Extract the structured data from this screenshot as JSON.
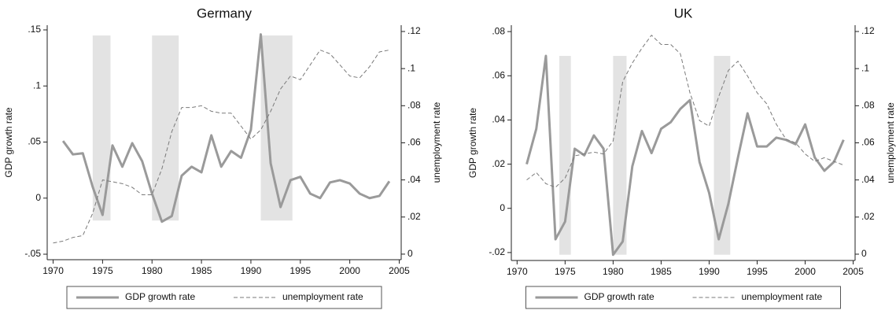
{
  "chart_data": [
    {
      "type": "line",
      "title": "Germany",
      "y_label": "GDP growth rate",
      "y2_label": "unemployment rate",
      "x": [
        1970,
        1971,
        1972,
        1973,
        1974,
        1975,
        1976,
        1977,
        1978,
        1979,
        1980,
        1981,
        1982,
        1983,
        1984,
        1985,
        1986,
        1987,
        1988,
        1989,
        1990,
        1991,
        1992,
        1993,
        1994,
        1995,
        1996,
        1997,
        1998,
        1999,
        2000,
        2001,
        2002,
        2003,
        2004
      ],
      "series": [
        {
          "name": "GDP growth rate",
          "color": "#9a9a9a",
          "line_style": "solid",
          "axis": "y",
          "values": [
            null,
            0.051,
            0.039,
            0.04,
            0.01,
            -0.015,
            0.047,
            0.028,
            0.049,
            0.033,
            0.004,
            -0.021,
            -0.016,
            0.02,
            0.028,
            0.023,
            0.056,
            0.028,
            0.042,
            0.036,
            0.061,
            0.146,
            0.031,
            -0.008,
            0.016,
            0.019,
            0.004,
            0.0,
            0.014,
            0.016,
            0.013,
            0.004,
            0.0,
            0.002,
            0.015
          ]
        },
        {
          "name": "unemployment rate",
          "color": "#7a7a7a",
          "line_style": "dashed",
          "axis": "y2",
          "values": [
            0.006,
            0.007,
            0.009,
            0.01,
            0.022,
            0.04,
            0.039,
            0.038,
            0.036,
            0.032,
            0.032,
            0.046,
            0.066,
            0.079,
            0.079,
            0.08,
            0.077,
            0.076,
            0.076,
            0.069,
            0.062,
            0.067,
            0.077,
            0.089,
            0.096,
            0.094,
            0.102,
            0.11,
            0.108,
            0.102,
            0.096,
            0.095,
            0.101,
            0.109,
            0.11
          ]
        }
      ],
      "recessions": [
        {
          "start": 1974,
          "end": 1975.8
        },
        {
          "start": 1980,
          "end": 1982.7
        },
        {
          "start": 1991,
          "end": 1994.2
        }
      ],
      "recession_range": [
        -0.02,
        0.145
      ],
      "xlim": [
        1969.4,
        2005.2
      ],
      "xticks": [
        1970,
        1975,
        1980,
        1985,
        1990,
        1995,
        2000,
        2005
      ],
      "ylim": [
        -0.0549,
        0.1542
      ],
      "yticks": [
        {
          "value": -0.05,
          "label": "-.05"
        },
        0,
        {
          "value": 0.05,
          "label": ".05"
        },
        {
          "value": 0.1,
          "label": ".1"
        },
        {
          "value": 0.15,
          "label": ".15"
        }
      ],
      "y2lim": [
        -0.003,
        0.1234
      ],
      "y2ticks": [
        0,
        {
          "value": 0.02,
          "label": ".02"
        },
        {
          "value": 0.04,
          "label": ".04"
        },
        {
          "value": 0.06,
          "label": ".06"
        },
        {
          "value": 0.08,
          "label": ".08"
        },
        {
          "value": 0.1,
          "label": ".1"
        },
        {
          "value": 0.12,
          "label": ".12"
        }
      ],
      "legend": "bottom"
    },
    {
      "type": "line",
      "title": "UK",
      "y_label": "GDP growth rate",
      "y2_label": "unemployment rate",
      "x": [
        1971,
        1972,
        1973,
        1974,
        1975,
        1976,
        1977,
        1978,
        1979,
        1980,
        1981,
        1982,
        1983,
        1984,
        1985,
        1986,
        1987,
        1988,
        1989,
        1990,
        1991,
        1992,
        1993,
        1994,
        1995,
        1996,
        1997,
        1998,
        1999,
        2000,
        2001,
        2002,
        2003,
        2004
      ],
      "series": [
        {
          "name": "GDP growth rate",
          "color": "#9a9a9a",
          "line_style": "solid",
          "axis": "y",
          "values": [
            0.02,
            0.036,
            0.069,
            -0.014,
            -0.006,
            0.027,
            0.024,
            0.033,
            0.027,
            -0.021,
            -0.015,
            0.019,
            0.035,
            0.025,
            0.036,
            0.039,
            0.045,
            0.049,
            0.021,
            0.007,
            -0.014,
            0.002,
            0.023,
            0.043,
            0.028,
            0.028,
            0.032,
            0.031,
            0.029,
            0.038,
            0.023,
            0.017,
            0.021,
            0.031
          ]
        },
        {
          "name": "unemployment rate",
          "color": "#7a7a7a",
          "line_style": "dashed",
          "axis": "y2",
          "values": [
            0.04,
            0.044,
            0.038,
            0.036,
            0.041,
            0.053,
            0.054,
            0.055,
            0.054,
            0.061,
            0.093,
            0.103,
            0.111,
            0.118,
            0.113,
            0.113,
            0.108,
            0.087,
            0.072,
            0.069,
            0.085,
            0.099,
            0.104,
            0.096,
            0.087,
            0.081,
            0.07,
            0.062,
            0.06,
            0.054,
            0.05,
            0.052,
            0.05,
            0.048
          ]
        }
      ],
      "recessions": [
        {
          "start": 1974.4,
          "end": 1975.6
        },
        {
          "start": 1980,
          "end": 1981.4
        },
        {
          "start": 1990.5,
          "end": 1992.2
        }
      ],
      "recession_range": [
        -0.021,
        0.069
      ],
      "xlim": [
        1969.4,
        2005.2
      ],
      "xticks": [
        1970,
        1975,
        1980,
        1985,
        1990,
        1995,
        2000,
        2005
      ],
      "ylim": [
        -0.0236,
        0.0829
      ],
      "yticks": [
        {
          "value": -0.02,
          "label": "-.02"
        },
        0,
        {
          "value": 0.02,
          "label": ".02"
        },
        {
          "value": 0.04,
          "label": ".04"
        },
        {
          "value": 0.06,
          "label": ".06"
        },
        {
          "value": 0.08,
          "label": ".08"
        }
      ],
      "y2lim": [
        -0.0034,
        0.1234
      ],
      "y2ticks": [
        0,
        {
          "value": 0.02,
          "label": ".02"
        },
        {
          "value": 0.04,
          "label": ".04"
        },
        {
          "value": 0.06,
          "label": ".06"
        },
        {
          "value": 0.08,
          "label": ".08"
        },
        {
          "value": 0.1,
          "label": ".1"
        },
        {
          "value": 0.12,
          "label": ".12"
        }
      ],
      "legend": "bottom"
    }
  ]
}
